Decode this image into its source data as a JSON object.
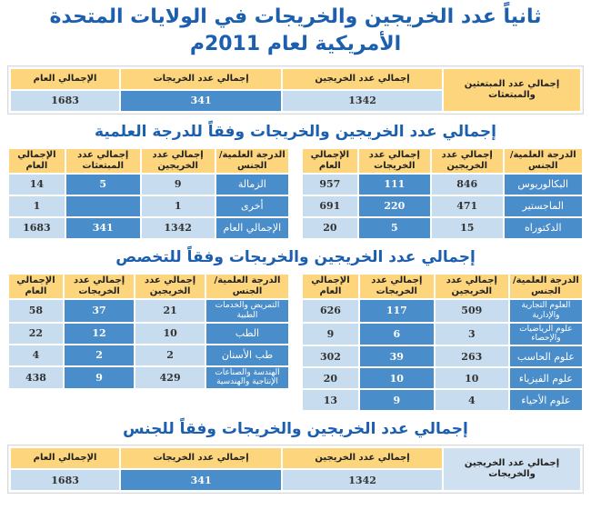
{
  "title": "ثانياً عدد الخريجين والخريجات في الولايات المتحدة الأمريكية لعام 2011م",
  "summary": {
    "label": "إجمالي عدد المبتعثين والمبتعثات",
    "headers": [
      "إجمالي عدد الخريجين",
      "إجمالي عدد الخريجات",
      "الإجمالي العام"
    ],
    "values": [
      "1342",
      "341",
      "1683"
    ]
  },
  "by_degree": {
    "heading": "إجمالي عدد الخريجين والخريجات وفقاً للدرجة العلمية",
    "right": {
      "headers": [
        "الدرجة العلمية/ الجنس",
        "إجمالي عدد الخريجين",
        "إجمالي عدد الخريجات",
        "الإجمالي العام"
      ],
      "rows": [
        [
          "البكالوريوس",
          "846",
          "111",
          "957"
        ],
        [
          "الماجستير",
          "471",
          "220",
          "691"
        ],
        [
          "الدكتوراه",
          "15",
          "5",
          "20"
        ]
      ]
    },
    "left": {
      "headers": [
        "الدرجة العلمية/ الجنس",
        "إجمالي عدد الخريجين",
        "إجمالي عدد المبتعثات",
        "الإجمالي العام"
      ],
      "rows": [
        [
          "الزمالة",
          "9",
          "5",
          "14"
        ],
        [
          "أخرى",
          "1",
          "",
          "1"
        ],
        [
          "الإجمالي العام",
          "1342",
          "341",
          "1683"
        ]
      ]
    }
  },
  "by_major": {
    "heading": "إجمالي عدد الخريجين والخريجات وفقاً للتخصص",
    "right": {
      "headers": [
        "الدرجة العلمية/ الجنس",
        "إجمالي عدد الخريجين",
        "إجمالي عدد الخريجات",
        "الإجمالي العام"
      ],
      "rows": [
        [
          "العلوم التجارية والإدارية",
          "509",
          "117",
          "626"
        ],
        [
          "علوم الرياضيات والإحصاء",
          "3",
          "6",
          "9"
        ],
        [
          "علوم الحاسب",
          "263",
          "39",
          "302"
        ],
        [
          "علوم الفيزياء",
          "10",
          "10",
          "20"
        ],
        [
          "علوم الأحياء",
          "4",
          "9",
          "13"
        ]
      ]
    },
    "left": {
      "headers": [
        "الدرجة العلمية/ الجنس",
        "إجمالي عدد الخريجين",
        "إجمالي عدد الخريجات",
        "الإجمالي العام"
      ],
      "rows": [
        [
          "التمريض والخدمات الطبية",
          "21",
          "37",
          "58"
        ],
        [
          "الطب",
          "10",
          "12",
          "22"
        ],
        [
          "طب الأسنان",
          "2",
          "2",
          "4"
        ],
        [
          "الهندسة والصناعات الإنتاجية والهندسية",
          "429",
          "9",
          "438"
        ]
      ]
    }
  },
  "by_gender": {
    "heading": "إجمالي عدد الخريجين والخريجات وفقاً للجنس",
    "label": "إجمالي عدد الخريجين والخريجات",
    "headers": [
      "إجمالي عدد الخريجين",
      "إجمالي عدد الخريجات",
      "الإجمالي العام"
    ],
    "values": [
      "1342",
      "341",
      "1683"
    ]
  },
  "colors": {
    "title": "#1b5fae",
    "header": "#fcd57c",
    "dark": "#4a8dcb",
    "light": "#c7dcef"
  }
}
